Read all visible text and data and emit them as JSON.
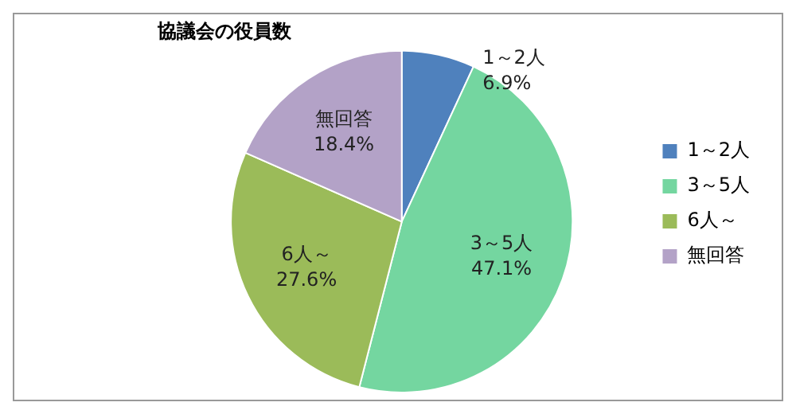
{
  "chart_data": {
    "type": "pie",
    "title": "協議会の役員数",
    "categories": [
      "1～2人",
      "3～5人",
      "6人～",
      "無回答"
    ],
    "values": [
      6.9,
      47.1,
      27.6,
      18.4
    ],
    "value_labels": [
      "6.9%",
      "47.1%",
      "27.6%",
      "18.4%"
    ],
    "colors": [
      "#4f81bd",
      "#74d6a0",
      "#9bbb59",
      "#b3a2c7"
    ],
    "legend": "right"
  }
}
